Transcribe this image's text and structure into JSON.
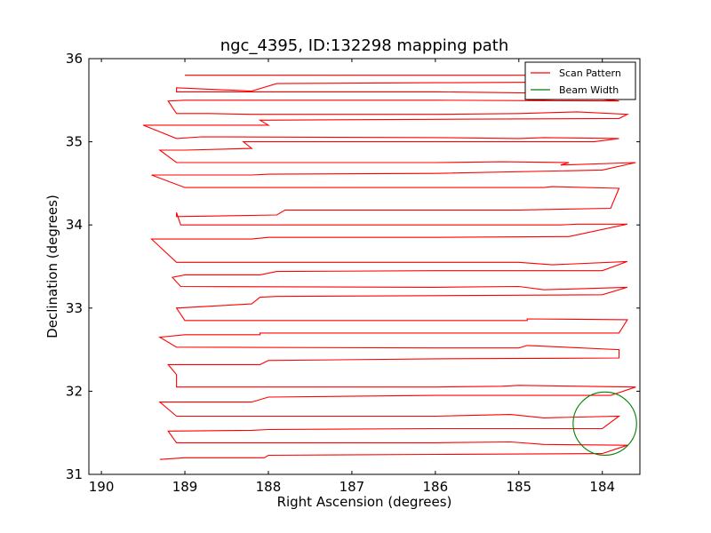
{
  "chart_data": {
    "type": "line",
    "title": "ngc_4395, ID:132298 mapping path",
    "xlabel": "Right Ascension (degrees)",
    "ylabel": "Declination (degrees)",
    "xlim": [
      190.15,
      183.55
    ],
    "ylim": [
      31,
      36
    ],
    "xticks": [
      190,
      189,
      188,
      187,
      186,
      185,
      184
    ],
    "yticks": [
      31,
      32,
      33,
      34,
      35,
      36
    ],
    "x_inverted": true,
    "legend": {
      "placement": "top-right",
      "entries": [
        "Scan Pattern",
        "Beam Width"
      ]
    },
    "series": [
      {
        "name": "Scan Pattern",
        "color": "#ff0000",
        "style": "line",
        "points": [
          [
            189.0,
            35.8
          ],
          [
            186.0,
            35.8
          ],
          [
            183.8,
            35.8
          ],
          [
            183.8,
            35.72
          ],
          [
            186.0,
            35.71
          ],
          [
            187.9,
            35.7
          ],
          [
            188.2,
            35.61
          ],
          [
            189.1,
            35.65
          ],
          [
            189.1,
            35.6
          ],
          [
            189.0,
            35.6
          ],
          [
            186.0,
            35.6
          ],
          [
            184.2,
            35.58
          ],
          [
            184.9,
            35.5
          ],
          [
            184.1,
            35.52
          ],
          [
            183.8,
            35.49
          ],
          [
            186.0,
            35.5
          ],
          [
            189.0,
            35.5
          ],
          [
            189.2,
            35.49
          ],
          [
            189.1,
            35.34
          ],
          [
            188.7,
            35.34
          ],
          [
            188.2,
            35.33
          ],
          [
            186.0,
            35.33
          ],
          [
            185.0,
            35.34
          ],
          [
            184.3,
            35.36
          ],
          [
            183.7,
            35.33
          ],
          [
            183.8,
            35.28
          ],
          [
            186.0,
            35.27
          ],
          [
            188.1,
            35.26
          ],
          [
            188.0,
            35.2
          ],
          [
            189.5,
            35.2
          ],
          [
            189.1,
            35.04
          ],
          [
            188.8,
            35.06
          ],
          [
            186.0,
            35.05
          ],
          [
            185.0,
            35.04
          ],
          [
            184.7,
            35.05
          ],
          [
            183.8,
            35.04
          ],
          [
            184.1,
            35.0
          ],
          [
            186.0,
            35.0
          ],
          [
            188.3,
            35.0
          ],
          [
            188.2,
            34.92
          ],
          [
            189.0,
            34.9
          ],
          [
            189.3,
            34.9
          ],
          [
            189.1,
            34.75
          ],
          [
            186.0,
            34.75
          ],
          [
            185.2,
            34.76
          ],
          [
            184.4,
            34.75
          ],
          [
            184.5,
            34.72
          ],
          [
            183.6,
            34.75
          ],
          [
            184.0,
            34.66
          ],
          [
            186.0,
            34.62
          ],
          [
            188.0,
            34.61
          ],
          [
            188.2,
            34.6
          ],
          [
            189.4,
            34.6
          ],
          [
            189.0,
            34.45
          ],
          [
            186.0,
            34.45
          ],
          [
            184.7,
            34.45
          ],
          [
            184.6,
            34.46
          ],
          [
            183.8,
            34.44
          ],
          [
            183.9,
            34.2
          ],
          [
            185.0,
            34.18
          ],
          [
            187.8,
            34.18
          ],
          [
            187.9,
            34.12
          ],
          [
            189.1,
            34.1
          ],
          [
            189.1,
            34.15
          ],
          [
            189.05,
            34.0
          ],
          [
            186.0,
            34.0
          ],
          [
            184.5,
            34.0
          ],
          [
            184.3,
            34.01
          ],
          [
            183.7,
            34.01
          ],
          [
            184.4,
            33.86
          ],
          [
            186.0,
            33.85
          ],
          [
            188.0,
            33.85
          ],
          [
            188.2,
            33.83
          ],
          [
            189.4,
            33.83
          ],
          [
            189.1,
            33.55
          ],
          [
            186.0,
            33.55
          ],
          [
            185.0,
            33.55
          ],
          [
            184.6,
            33.52
          ],
          [
            183.7,
            33.56
          ],
          [
            184.0,
            33.45
          ],
          [
            186.0,
            33.45
          ],
          [
            187.9,
            33.44
          ],
          [
            188.1,
            33.4
          ],
          [
            189.0,
            33.4
          ],
          [
            189.15,
            33.37
          ],
          [
            189.05,
            33.26
          ],
          [
            186.0,
            33.25
          ],
          [
            185.0,
            33.26
          ],
          [
            184.7,
            33.22
          ],
          [
            183.7,
            33.25
          ],
          [
            184.0,
            33.16
          ],
          [
            186.0,
            33.15
          ],
          [
            187.9,
            33.14
          ],
          [
            188.1,
            33.13
          ],
          [
            188.2,
            33.05
          ],
          [
            189.1,
            33.0
          ],
          [
            189.0,
            32.85
          ],
          [
            186.0,
            32.85
          ],
          [
            184.9,
            32.85
          ],
          [
            184.9,
            32.87
          ],
          [
            183.7,
            32.86
          ],
          [
            183.8,
            32.7
          ],
          [
            186.0,
            32.7
          ],
          [
            188.1,
            32.7
          ],
          [
            188.1,
            32.68
          ],
          [
            189.0,
            32.68
          ],
          [
            189.3,
            32.65
          ],
          [
            189.1,
            32.53
          ],
          [
            186.0,
            32.52
          ],
          [
            185.0,
            32.52
          ],
          [
            184.9,
            32.55
          ],
          [
            183.8,
            32.5
          ],
          [
            183.8,
            32.4
          ],
          [
            186.0,
            32.39
          ],
          [
            188.0,
            32.37
          ],
          [
            188.1,
            32.32
          ],
          [
            189.2,
            32.32
          ],
          [
            189.1,
            32.2
          ],
          [
            189.1,
            32.05
          ],
          [
            186.0,
            32.05
          ],
          [
            185.2,
            32.06
          ],
          [
            185.0,
            32.07
          ],
          [
            183.6,
            32.05
          ],
          [
            183.9,
            31.95
          ],
          [
            186.0,
            31.95
          ],
          [
            188.0,
            31.93
          ],
          [
            188.2,
            31.87
          ],
          [
            189.3,
            31.87
          ],
          [
            189.1,
            31.7
          ],
          [
            186.0,
            31.7
          ],
          [
            185.1,
            31.72
          ],
          [
            184.7,
            31.68
          ],
          [
            183.8,
            31.7
          ],
          [
            184.0,
            31.55
          ],
          [
            186.0,
            31.55
          ],
          [
            188.0,
            31.54
          ],
          [
            188.2,
            31.53
          ],
          [
            189.2,
            31.52
          ],
          [
            189.1,
            31.38
          ],
          [
            186.0,
            31.38
          ],
          [
            185.1,
            31.39
          ],
          [
            184.7,
            31.36
          ],
          [
            183.7,
            31.35
          ],
          [
            184.0,
            31.25
          ],
          [
            186.0,
            31.24
          ],
          [
            188.0,
            31.23
          ],
          [
            188.05,
            31.2
          ],
          [
            189.0,
            31.2
          ],
          [
            189.3,
            31.18
          ]
        ]
      }
    ],
    "beam": {
      "name": "Beam Width",
      "color": "#008000",
      "center": [
        183.97,
        31.61
      ],
      "radius_deg": 0.38
    }
  }
}
